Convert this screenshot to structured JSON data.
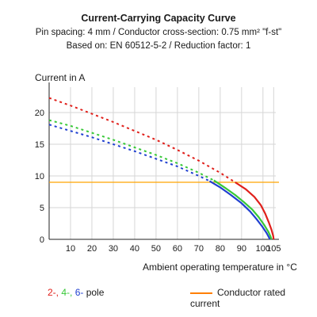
{
  "chart_data": {
    "type": "line",
    "title": "Current-Carrying Capacity Curve",
    "subtitle_lines": [
      "Pin spacing: 4 mm / Conductor cross-section: 0.75 mm² \"f-st\"",
      "Based on: EN 60512-5-2 / Reduction factor: 1"
    ],
    "ylabel": "Current in A",
    "xlabel": "Ambient operating temperature in °C",
    "xlim": [
      0,
      106
    ],
    "ylim": [
      0,
      24
    ],
    "xticks": [
      10,
      20,
      30,
      40,
      50,
      60,
      70,
      80,
      90,
      100,
      105
    ],
    "yticks": [
      0,
      5,
      10,
      15,
      20
    ],
    "grid": true,
    "series": [
      {
        "color": "#e0201b",
        "dashed_until_x": 87,
        "points": [
          [
            0,
            22.3
          ],
          [
            10,
            21.1
          ],
          [
            20,
            19.8
          ],
          [
            30,
            18.5
          ],
          [
            40,
            17.1
          ],
          [
            50,
            15.7
          ],
          [
            60,
            14.1
          ],
          [
            70,
            12.4
          ],
          [
            80,
            10.5
          ],
          [
            87,
            9.0
          ],
          [
            92,
            7.9
          ],
          [
            96,
            6.7
          ],
          [
            99,
            5.4
          ],
          [
            101,
            4.1
          ],
          [
            102.7,
            2.7
          ],
          [
            104,
            1.5
          ],
          [
            104.8,
            0.5
          ],
          [
            105,
            0
          ]
        ]
      },
      {
        "color": "#37c837",
        "dashed_until_x": 77,
        "points": [
          [
            0,
            18.8
          ],
          [
            10,
            17.9
          ],
          [
            20,
            16.8
          ],
          [
            30,
            15.7
          ],
          [
            40,
            14.5
          ],
          [
            50,
            13.3
          ],
          [
            60,
            12.0
          ],
          [
            70,
            10.5
          ],
          [
            77,
            9.3
          ],
          [
            82,
            8.2
          ],
          [
            87,
            7.0
          ],
          [
            91,
            5.9
          ],
          [
            95,
            4.7
          ],
          [
            98,
            3.5
          ],
          [
            100.5,
            2.3
          ],
          [
            102.5,
            1.2
          ],
          [
            103.6,
            0.4
          ],
          [
            104,
            0
          ]
        ]
      },
      {
        "color": "#2040d0",
        "dashed_until_x": 75,
        "points": [
          [
            0,
            18.1
          ],
          [
            10,
            17.1
          ],
          [
            20,
            16.1
          ],
          [
            30,
            15.0
          ],
          [
            40,
            13.9
          ],
          [
            50,
            12.7
          ],
          [
            60,
            11.5
          ],
          [
            70,
            10.0
          ],
          [
            75,
            9.2
          ],
          [
            80,
            8.2
          ],
          [
            85,
            7.0
          ],
          [
            90,
            5.7
          ],
          [
            94,
            4.4
          ],
          [
            97,
            3.2
          ],
          [
            99.7,
            2.0
          ],
          [
            101.7,
            1.0
          ],
          [
            102.8,
            0.3
          ],
          [
            103.2,
            0
          ]
        ]
      }
    ],
    "reference_line": {
      "y": 9,
      "color": "#ffa500",
      "label": "Conductor rated current"
    },
    "legend": {
      "pole_labels": [
        {
          "text": "2-, ",
          "color": "#e0201b"
        },
        {
          "text": "4-, ",
          "color": "#37c837"
        },
        {
          "text": "6-",
          "color": "#2040d0"
        }
      ],
      "pole_suffix": " pole",
      "rated_label": "Conductor rated current"
    }
  }
}
